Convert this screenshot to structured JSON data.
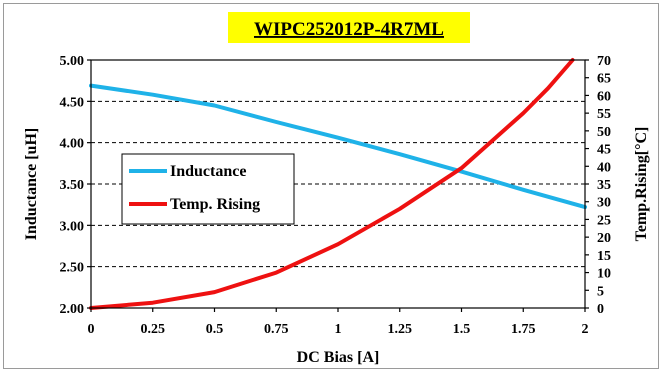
{
  "chart_data": {
    "type": "line",
    "title": "WIPC252012P-4R7ML",
    "xlabel": "DC Bias [A]",
    "ylabel": "Inductance [uH]",
    "y2label": "Temp.Rising[°C]",
    "xlim": [
      0,
      2
    ],
    "ylim": [
      2.0,
      5.0
    ],
    "y2lim": [
      0,
      70
    ],
    "x_ticks": [
      "0",
      "0.25",
      "0.5",
      "0.75",
      "1",
      "1.25",
      "1.5",
      "1.75",
      "2"
    ],
    "y_ticks": [
      "2.00",
      "2.50",
      "3.00",
      "3.50",
      "4.00",
      "4.50",
      "5.00"
    ],
    "y2_ticks": [
      "0",
      "5",
      "10",
      "15",
      "20",
      "25",
      "30",
      "35",
      "40",
      "45",
      "50",
      "55",
      "60",
      "65",
      "70"
    ],
    "grid": "horizontal dashed",
    "legend_position": "center-left",
    "series": [
      {
        "name": "Inductance",
        "axis": "left",
        "color": "#1fb2e8",
        "x": [
          0,
          0.25,
          0.5,
          0.75,
          1.0,
          1.25,
          1.5,
          1.75,
          2.0
        ],
        "y": [
          4.69,
          4.58,
          4.45,
          4.25,
          4.06,
          3.86,
          3.65,
          3.43,
          3.22
        ]
      },
      {
        "name": "Temp. Rising",
        "axis": "right",
        "color": "#ee1111",
        "x": [
          0,
          0.25,
          0.5,
          0.75,
          1.0,
          1.25,
          1.5,
          1.75,
          1.85,
          1.95
        ],
        "y": [
          0,
          1.5,
          4.5,
          10,
          18,
          28,
          39.5,
          55,
          62,
          70
        ]
      }
    ]
  }
}
